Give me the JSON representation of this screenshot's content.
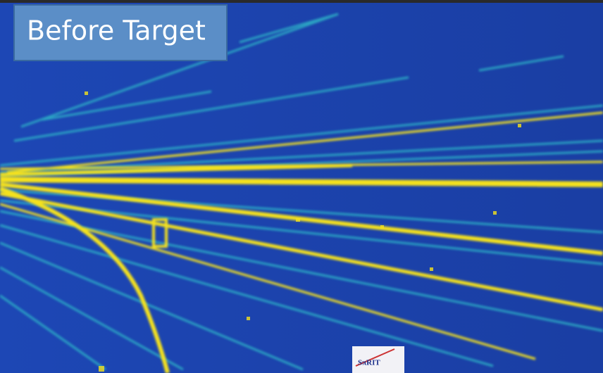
{
  "label": {
    "text": "Before Target"
  },
  "logo": {
    "text": "SπRIT"
  }
}
